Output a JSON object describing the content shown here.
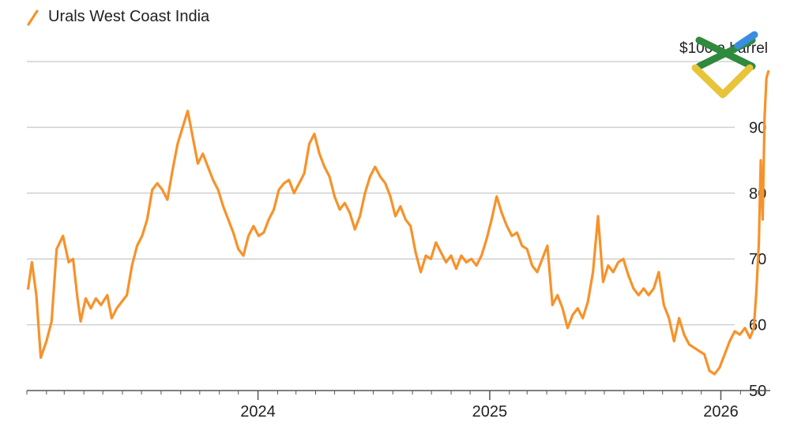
{
  "chart_data": {
    "type": "line",
    "title": "",
    "xlabel": "",
    "ylabel": "",
    "unit_label": "$100 a barrel",
    "legend": {
      "position": "top-left",
      "entries": [
        "Urals West Coast India"
      ]
    },
    "grid": true,
    "xlim": [
      "2023-01-01",
      "2026-03-20"
    ],
    "ylim": [
      50,
      100
    ],
    "x_ticks": [
      {
        "date": "2024-01-01",
        "label": "2024"
      },
      {
        "date": "2025-01-01",
        "label": "2025"
      },
      {
        "date": "2026-01-01",
        "label": "2026"
      }
    ],
    "y_ticks": [
      {
        "value": 50,
        "label": "50"
      },
      {
        "value": 60,
        "label": "60"
      },
      {
        "value": 70,
        "label": "70"
      },
      {
        "value": 80,
        "label": "80"
      },
      {
        "value": 90,
        "label": "90"
      },
      {
        "value": 100,
        "label": ""
      }
    ],
    "colors": {
      "series": "#f7922a",
      "grid": "#d0d0d0",
      "axis": "#555555",
      "text": "#222222"
    },
    "series": [
      {
        "name": "Urals West Coast India",
        "points": [
          [
            "2023-01-03",
            65.5
          ],
          [
            "2023-01-09",
            69.5
          ],
          [
            "2023-01-16",
            64.5
          ],
          [
            "2023-01-23",
            55.0
          ],
          [
            "2023-02-01",
            57.5
          ],
          [
            "2023-02-09",
            60.5
          ],
          [
            "2023-02-17",
            71.5
          ],
          [
            "2023-02-27",
            73.5
          ],
          [
            "2023-03-08",
            69.5
          ],
          [
            "2023-03-15",
            70.0
          ],
          [
            "2023-03-22",
            64.0
          ],
          [
            "2023-03-27",
            60.5
          ],
          [
            "2023-04-04",
            64.0
          ],
          [
            "2023-04-12",
            62.5
          ],
          [
            "2023-04-20",
            64.0
          ],
          [
            "2023-04-28",
            63.0
          ],
          [
            "2023-05-08",
            64.5
          ],
          [
            "2023-05-15",
            61.0
          ],
          [
            "2023-05-23",
            62.5
          ],
          [
            "2023-05-31",
            63.5
          ],
          [
            "2023-06-08",
            64.5
          ],
          [
            "2023-06-16",
            69.0
          ],
          [
            "2023-06-24",
            72.0
          ],
          [
            "2023-07-02",
            73.5
          ],
          [
            "2023-07-10",
            76.0
          ],
          [
            "2023-07-18",
            80.5
          ],
          [
            "2023-07-26",
            81.5
          ],
          [
            "2023-08-03",
            80.5
          ],
          [
            "2023-08-11",
            79.0
          ],
          [
            "2023-08-19",
            83.5
          ],
          [
            "2023-08-27",
            87.5
          ],
          [
            "2023-09-04",
            90.0
          ],
          [
            "2023-09-12",
            92.5
          ],
          [
            "2023-09-20",
            88.5
          ],
          [
            "2023-09-28",
            84.5
          ],
          [
            "2023-10-06",
            86.0
          ],
          [
            "2023-10-14",
            84.0
          ],
          [
            "2023-10-22",
            82.0
          ],
          [
            "2023-10-30",
            80.5
          ],
          [
            "2023-11-07",
            78.0
          ],
          [
            "2023-11-15",
            76.0
          ],
          [
            "2023-11-23",
            74.0
          ],
          [
            "2023-12-01",
            71.5
          ],
          [
            "2023-12-09",
            70.5
          ],
          [
            "2023-12-17",
            73.5
          ],
          [
            "2023-12-25",
            75.0
          ],
          [
            "2024-01-02",
            73.5
          ],
          [
            "2024-01-10",
            74.0
          ],
          [
            "2024-01-18",
            76.0
          ],
          [
            "2024-01-26",
            77.5
          ],
          [
            "2024-02-03",
            80.5
          ],
          [
            "2024-02-11",
            81.5
          ],
          [
            "2024-02-19",
            82.0
          ],
          [
            "2024-02-27",
            80.0
          ],
          [
            "2024-03-06",
            81.5
          ],
          [
            "2024-03-14",
            83.0
          ],
          [
            "2024-03-22",
            87.5
          ],
          [
            "2024-03-30",
            89.0
          ],
          [
            "2024-04-07",
            86.0
          ],
          [
            "2024-04-15",
            84.0
          ],
          [
            "2024-04-23",
            82.5
          ],
          [
            "2024-05-01",
            79.5
          ],
          [
            "2024-05-09",
            77.5
          ],
          [
            "2024-05-17",
            78.5
          ],
          [
            "2024-05-25",
            77.0
          ],
          [
            "2024-06-02",
            74.5
          ],
          [
            "2024-06-10",
            76.5
          ],
          [
            "2024-06-18",
            80.0
          ],
          [
            "2024-06-26",
            82.5
          ],
          [
            "2024-07-04",
            84.0
          ],
          [
            "2024-07-12",
            82.5
          ],
          [
            "2024-07-20",
            81.5
          ],
          [
            "2024-07-28",
            79.5
          ],
          [
            "2024-08-05",
            76.5
          ],
          [
            "2024-08-13",
            78.0
          ],
          [
            "2024-08-21",
            76.0
          ],
          [
            "2024-08-29",
            75.0
          ],
          [
            "2024-09-06",
            71.0
          ],
          [
            "2024-09-14",
            68.0
          ],
          [
            "2024-09-22",
            70.5
          ],
          [
            "2024-09-30",
            70.0
          ],
          [
            "2024-10-08",
            72.5
          ],
          [
            "2024-10-16",
            71.0
          ],
          [
            "2024-10-24",
            69.5
          ],
          [
            "2024-11-01",
            70.5
          ],
          [
            "2024-11-09",
            68.5
          ],
          [
            "2024-11-17",
            70.5
          ],
          [
            "2024-11-25",
            69.5
          ],
          [
            "2024-12-03",
            70.0
          ],
          [
            "2024-12-11",
            69.0
          ],
          [
            "2024-12-19",
            70.5
          ],
          [
            "2024-12-27",
            73.0
          ],
          [
            "2025-01-04",
            76.0
          ],
          [
            "2025-01-12",
            79.5
          ],
          [
            "2025-01-20",
            77.0
          ],
          [
            "2025-01-28",
            75.0
          ],
          [
            "2025-02-05",
            73.5
          ],
          [
            "2025-02-13",
            74.0
          ],
          [
            "2025-02-21",
            72.0
          ],
          [
            "2025-03-01",
            71.5
          ],
          [
            "2025-03-09",
            69.0
          ],
          [
            "2025-03-17",
            68.0
          ],
          [
            "2025-03-25",
            70.0
          ],
          [
            "2025-04-02",
            72.0
          ],
          [
            "2025-04-10",
            63.0
          ],
          [
            "2025-04-18",
            64.5
          ],
          [
            "2025-04-26",
            62.5
          ],
          [
            "2025-05-04",
            59.5
          ],
          [
            "2025-05-12",
            61.5
          ],
          [
            "2025-05-20",
            62.5
          ],
          [
            "2025-05-28",
            61.0
          ],
          [
            "2025-06-05",
            63.5
          ],
          [
            "2025-06-13",
            68.0
          ],
          [
            "2025-06-21",
            76.5
          ],
          [
            "2025-06-29",
            66.5
          ],
          [
            "2025-07-07",
            69.0
          ],
          [
            "2025-07-15",
            68.0
          ],
          [
            "2025-07-23",
            69.5
          ],
          [
            "2025-07-31",
            70.0
          ],
          [
            "2025-08-08",
            67.5
          ],
          [
            "2025-08-16",
            65.5
          ],
          [
            "2025-08-24",
            64.5
          ],
          [
            "2025-09-01",
            65.5
          ],
          [
            "2025-09-09",
            64.5
          ],
          [
            "2025-09-17",
            65.5
          ],
          [
            "2025-09-25",
            68.0
          ],
          [
            "2025-10-03",
            63.0
          ],
          [
            "2025-10-11",
            61.0
          ],
          [
            "2025-10-19",
            57.5
          ],
          [
            "2025-10-27",
            61.0
          ],
          [
            "2025-11-04",
            58.5
          ],
          [
            "2025-11-12",
            57.0
          ],
          [
            "2025-11-20",
            56.5
          ],
          [
            "2025-11-28",
            56.0
          ],
          [
            "2025-12-06",
            55.5
          ],
          [
            "2025-12-14",
            53.0
          ],
          [
            "2025-12-22",
            52.5
          ],
          [
            "2025-12-30",
            53.5
          ],
          [
            "2026-01-07",
            55.5
          ],
          [
            "2026-01-15",
            57.5
          ],
          [
            "2026-01-23",
            59.0
          ],
          [
            "2026-01-31",
            58.5
          ],
          [
            "2026-02-08",
            59.5
          ],
          [
            "2026-02-16",
            58.0
          ],
          [
            "2026-02-22",
            59.5
          ],
          [
            "2026-02-26",
            65.0
          ],
          [
            "2026-03-02",
            72.5
          ],
          [
            "2026-03-05",
            85.0
          ],
          [
            "2026-03-08",
            76.0
          ],
          [
            "2026-03-11",
            91.5
          ],
          [
            "2026-03-14",
            97.5
          ],
          [
            "2026-03-17",
            98.5
          ]
        ]
      }
    ]
  },
  "logo": {
    "name": "litefinance-logo",
    "colors": [
      "#2f8a3e",
      "#e8c43a",
      "#3a8de0"
    ]
  }
}
